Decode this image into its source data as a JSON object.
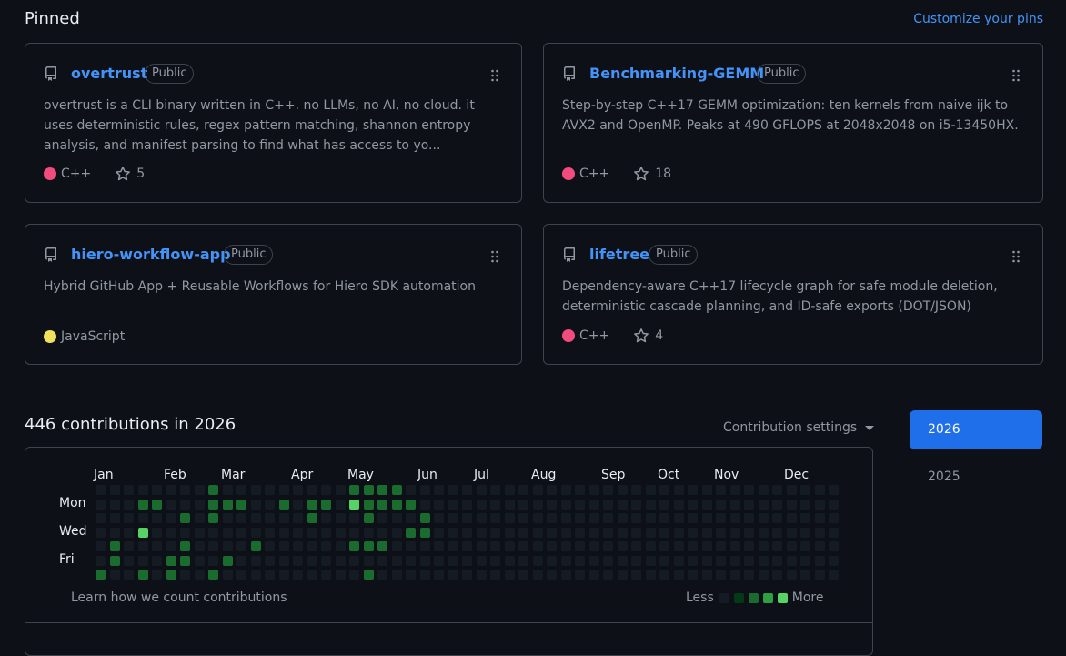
{
  "pinned": {
    "title": "Pinned",
    "customize_label": "Customize your pins",
    "repos": [
      {
        "name": "overtrust",
        "visibility": "Public",
        "description": "overtrust is a CLI binary written in C++. no LLMs, no AI, no cloud. it uses deterministic rules, regex pattern matching, shannon entropy analysis, and manifest parsing to find what has access to yo...",
        "language": "C++",
        "language_color": "#f34b7d",
        "stars": "5"
      },
      {
        "name": "Benchmarking-GEMM",
        "visibility": "Public",
        "description": "Step-by-step C++17 GEMM optimization: ten kernels from naive ijk to AVX2 and OpenMP. Peaks at 490 GFLOPS at 2048x2048 on i5-13450HX.",
        "language": "C++",
        "language_color": "#f34b7d",
        "stars": "18"
      },
      {
        "name": "hiero-workflow-app",
        "visibility": "Public",
        "description": "Hybrid GitHub App + Reusable Workflows for Hiero SDK automation",
        "language": "JavaScript",
        "language_color": "#f1e05a",
        "stars": ""
      },
      {
        "name": "lifetree",
        "visibility": "Public",
        "description": "Dependency-aware C++17 lifecycle graph for safe module deletion, deterministic cascade planning, and ID-safe exports (DOT/JSON)",
        "language": "C++",
        "language_color": "#f34b7d",
        "stars": "4"
      }
    ]
  },
  "contributions": {
    "title": "446 contributions in 2026",
    "settings_label": "Contribution settings",
    "months": [
      "Jan",
      "Feb",
      "Mar",
      "Apr",
      "May",
      "Jun",
      "Jul",
      "Aug",
      "Sep",
      "Oct",
      "Nov",
      "Dec"
    ],
    "day_labels": [
      "Mon",
      "Wed",
      "Fri"
    ],
    "learn_link": "Learn how we count contributions",
    "legend_less": "Less",
    "legend_more": "More",
    "level_colors": [
      "#151b23",
      "#033a16",
      "#196c2e",
      "#2ea043",
      "#56d364"
    ],
    "weeks": [
      [
        0,
        0,
        0,
        0,
        0,
        0,
        2
      ],
      [
        0,
        0,
        0,
        0,
        2,
        2,
        0
      ],
      [
        0,
        0,
        0,
        0,
        0,
        0,
        0
      ],
      [
        0,
        2,
        0,
        4,
        0,
        0,
        2
      ],
      [
        0,
        2,
        0,
        0,
        0,
        0,
        0
      ],
      [
        0,
        0,
        0,
        0,
        0,
        2,
        2
      ],
      [
        0,
        0,
        2,
        0,
        2,
        2,
        0
      ],
      [
        0,
        0,
        0,
        0,
        0,
        0,
        0
      ],
      [
        2,
        2,
        2,
        0,
        0,
        0,
        2
      ],
      [
        0,
        2,
        0,
        0,
        0,
        2,
        0
      ],
      [
        0,
        2,
        0,
        0,
        0,
        0,
        0
      ],
      [
        0,
        0,
        0,
        0,
        2,
        0,
        0
      ],
      [
        0,
        0,
        0,
        0,
        0,
        0,
        0
      ],
      [
        0,
        2,
        0,
        0,
        0,
        0,
        0
      ],
      [
        0,
        0,
        0,
        0,
        0,
        0,
        0
      ],
      [
        0,
        2,
        2,
        0,
        0,
        0,
        0
      ],
      [
        0,
        2,
        0,
        0,
        0,
        0,
        0
      ],
      [
        0,
        0,
        0,
        0,
        0,
        0,
        0
      ],
      [
        2,
        4,
        0,
        0,
        2,
        0,
        0
      ],
      [
        2,
        2,
        2,
        0,
        2,
        0,
        2
      ],
      [
        2,
        2,
        0,
        0,
        2,
        0,
        0
      ],
      [
        2,
        2,
        0,
        0,
        0,
        0,
        0
      ],
      [
        0,
        2,
        0,
        2,
        0,
        0,
        0
      ],
      [
        0,
        0,
        2,
        2,
        0,
        0,
        0
      ],
      [
        0,
        0,
        0,
        0,
        0,
        0,
        0
      ],
      [
        0,
        0,
        0,
        0,
        0,
        0,
        0
      ],
      [
        0,
        0,
        0,
        0,
        0,
        0,
        0
      ],
      [
        0,
        0,
        0,
        0,
        0,
        0,
        0
      ],
      [
        0,
        0,
        0,
        0,
        0,
        0,
        0
      ],
      [
        0,
        0,
        0,
        0,
        0,
        0,
        0
      ],
      [
        0,
        0,
        0,
        0,
        0,
        0,
        0
      ],
      [
        0,
        0,
        0,
        0,
        0,
        0,
        0
      ],
      [
        0,
        0,
        0,
        0,
        0,
        0,
        0
      ],
      [
        0,
        0,
        0,
        0,
        0,
        0,
        0
      ],
      [
        0,
        0,
        0,
        0,
        0,
        0,
        0
      ],
      [
        0,
        0,
        0,
        0,
        0,
        0,
        0
      ],
      [
        0,
        0,
        0,
        0,
        0,
        0,
        0
      ],
      [
        0,
        0,
        0,
        0,
        0,
        0,
        0
      ],
      [
        0,
        0,
        0,
        0,
        0,
        0,
        0
      ],
      [
        0,
        0,
        0,
        0,
        0,
        0,
        0
      ],
      [
        0,
        0,
        0,
        0,
        0,
        0,
        0
      ],
      [
        0,
        0,
        0,
        0,
        0,
        0,
        0
      ],
      [
        0,
        0,
        0,
        0,
        0,
        0,
        0
      ],
      [
        0,
        0,
        0,
        0,
        0,
        0,
        0
      ],
      [
        0,
        0,
        0,
        0,
        0,
        0,
        0
      ],
      [
        0,
        0,
        0,
        0,
        0,
        0,
        0
      ],
      [
        0,
        0,
        0,
        0,
        0,
        0,
        0
      ],
      [
        0,
        0,
        0,
        0,
        0,
        0,
        0
      ],
      [
        0,
        0,
        0,
        0,
        0,
        0,
        0
      ],
      [
        0,
        0,
        0,
        0,
        0,
        0,
        0
      ],
      [
        0,
        0,
        0,
        0,
        0,
        0,
        0
      ],
      [
        0,
        0,
        0,
        0,
        0,
        0,
        0
      ],
      [
        0,
        0,
        0,
        0,
        0,
        0,
        0
      ]
    ]
  },
  "years": {
    "active": "2026",
    "other": "2025"
  }
}
